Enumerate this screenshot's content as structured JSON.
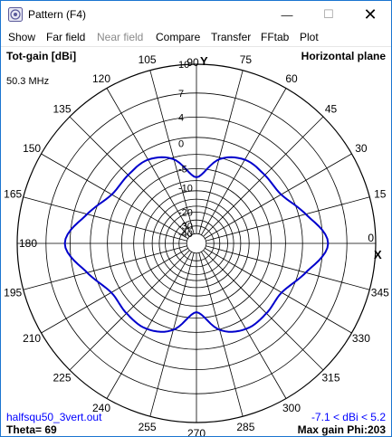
{
  "window": {
    "title": "Pattern   (F4)",
    "minimize": "—",
    "maximize": "☐",
    "close": "✕"
  },
  "menu": [
    {
      "label": "Show",
      "enabled": true
    },
    {
      "label": "Far field",
      "enabled": true
    },
    {
      "label": "Near field",
      "enabled": false
    },
    {
      "label": "Compare",
      "enabled": true
    },
    {
      "label": "Transfer",
      "enabled": true
    },
    {
      "label": "FFtab",
      "enabled": true
    },
    {
      "label": "Plot",
      "enabled": true
    }
  ],
  "plot": {
    "gain_label": "Tot-gain [dBi]",
    "plane": "Horizontal plane",
    "frequency": "50.3 MHz",
    "file": "halfsqu50_3vert.out",
    "theta": "Theta= 69",
    "range": "-7.1 < dBi < 5.2",
    "max_gain": "Max gain Phi:203",
    "x_axis_label": "X",
    "y_axis_label": "Y",
    "colors": {
      "pattern": "#0000cc",
      "grid": "#000000",
      "info": "#0000ff"
    }
  },
  "chart_data": {
    "type": "polar",
    "angle_ticks": [
      "0",
      "15",
      "30",
      "45",
      "60",
      "75",
      "90",
      "105",
      "120",
      "135",
      "150",
      "165",
      "180",
      "195",
      "210",
      "225",
      "240",
      "255",
      "270",
      "285",
      "300",
      "315",
      "330",
      "345"
    ],
    "radial_ticks": [
      "10",
      "7",
      "4",
      "0",
      "-5",
      "-10",
      "-20",
      "-30",
      "-40"
    ],
    "radial_unit": "dBi",
    "series": [
      {
        "type": "line",
        "x_unit": "phi (deg)",
        "y_unit": "gain (dBi)",
        "x": [
          0,
          15,
          30,
          45,
          60,
          75,
          90,
          105,
          120,
          135,
          150,
          165,
          180,
          195,
          210,
          225,
          240,
          255,
          270,
          285,
          300,
          315,
          330,
          345,
          360
        ],
        "y": [
          4.7,
          2.1,
          -0.4,
          -0.6,
          -0.6,
          -2.4,
          -7.1,
          -2.4,
          -0.6,
          -0.6,
          -0.4,
          2.1,
          4.7,
          2.1,
          -0.3,
          -0.2,
          -0.2,
          -1.9,
          -6.4,
          -1.9,
          -0.2,
          -0.2,
          -0.3,
          2.1,
          4.7
        ]
      }
    ]
  }
}
